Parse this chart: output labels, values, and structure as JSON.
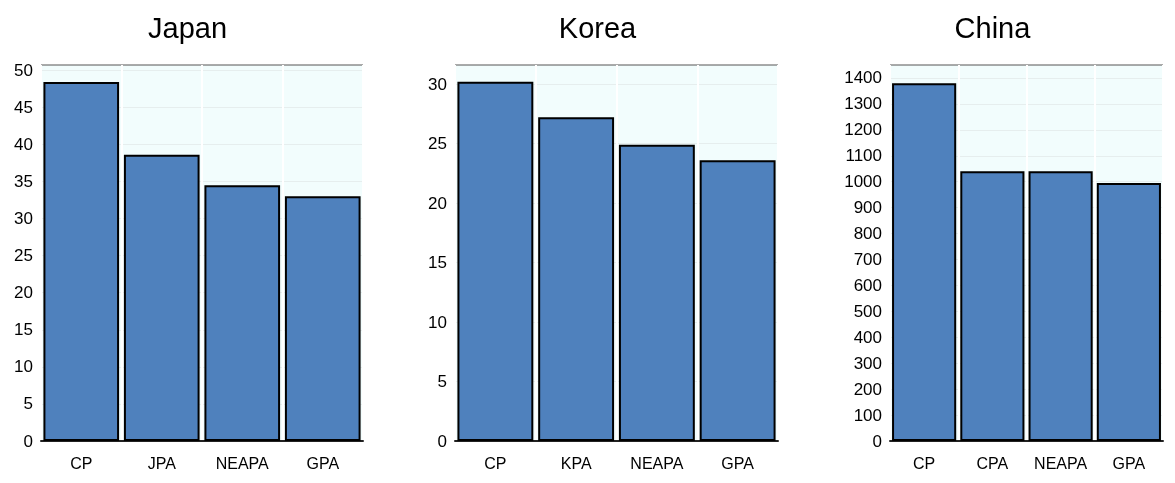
{
  "chart_data": [
    {
      "type": "bar",
      "title": "Japan",
      "categories": [
        "CP",
        "JPA",
        "NEAPA",
        "GPA"
      ],
      "values": [
        48.4,
        38.6,
        34.5,
        33.0
      ],
      "color": "#4f81bd",
      "ylim": [
        0,
        50.7
      ],
      "yticks": [
        0,
        5,
        10,
        15,
        20,
        25,
        30,
        35,
        40,
        45,
        50
      ],
      "grid": true
    },
    {
      "type": "bar",
      "title": "Korea",
      "categories": [
        "CP",
        "KPA",
        "NEAPA",
        "GPA"
      ],
      "values": [
        30.2,
        27.2,
        24.9,
        23.6
      ],
      "color": "#4f81bd",
      "ylim": [
        0,
        31.6
      ],
      "yticks": [
        0,
        5,
        10,
        15,
        20,
        25,
        30
      ],
      "grid": true
    },
    {
      "type": "bar",
      "title": "China",
      "categories": [
        "CP",
        "CPA",
        "NEAPA",
        "GPA"
      ],
      "values": [
        1380,
        1040,
        1040,
        995
      ],
      "color": "#4f81bd",
      "ylim": [
        0,
        1450
      ],
      "yticks": [
        0,
        100,
        200,
        300,
        400,
        500,
        600,
        700,
        800,
        900,
        1000,
        1100,
        1200,
        1300,
        1400
      ],
      "grid": true
    }
  ]
}
